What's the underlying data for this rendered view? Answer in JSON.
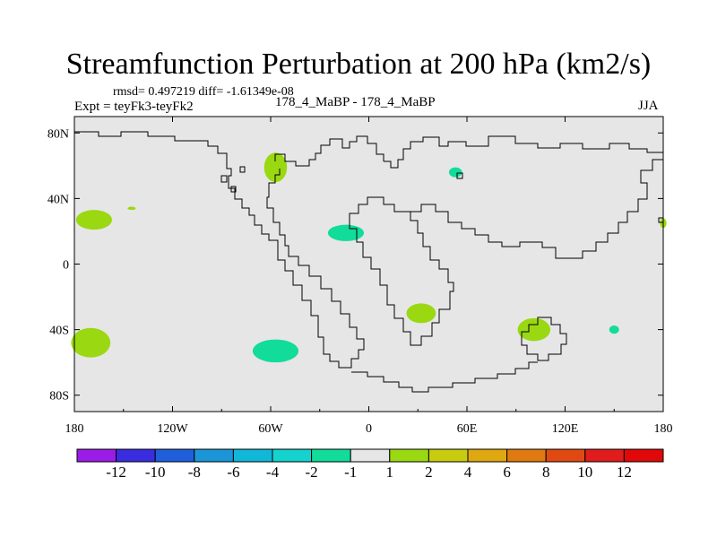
{
  "header": {
    "title": "Streamfunction Perturbation at 200 hPa (km2/s)",
    "stats": "rmsd= 0.497219 diff= -1.61349e-08",
    "experiment": "Expt = teyFk3-teyFk2",
    "case": "178_4_MaBP - 178_4_MaBP",
    "season": "JJA"
  },
  "chart_data": {
    "type": "heatmap",
    "title": "Streamfunction Perturbation at 200 hPa (km2/s)",
    "xlabel": "",
    "ylabel": "",
    "xlim": [
      -180,
      180
    ],
    "ylim": [
      -90,
      90
    ],
    "x_ticks": [
      {
        "value": -180,
        "label": "180"
      },
      {
        "value": -120,
        "label": "120W"
      },
      {
        "value": -60,
        "label": "60W"
      },
      {
        "value": 0,
        "label": "0"
      },
      {
        "value": 60,
        "label": "60E"
      },
      {
        "value": 120,
        "label": "120E"
      },
      {
        "value": 180,
        "label": "180"
      }
    ],
    "y_ticks": [
      {
        "value": 80,
        "label": "80N"
      },
      {
        "value": 40,
        "label": "40N"
      },
      {
        "value": 0,
        "label": "0"
      },
      {
        "value": -40,
        "label": "40S"
      },
      {
        "value": -80,
        "label": "80S"
      }
    ],
    "background_color": "#e6e6e6",
    "colorbar": {
      "boundaries": [
        "-12",
        "-10",
        "-8",
        "-6",
        "-4",
        "-2",
        "-1",
        "1",
        "2",
        "4",
        "6",
        "8",
        "10",
        "12"
      ],
      "colors": [
        "#9b1ce6",
        "#3a2de0",
        "#1f5fdc",
        "#1a96d8",
        "#11b7d6",
        "#15d2cf",
        "#11dc9a",
        "#e6e6e6",
        "#9ad812",
        "#c8cc10",
        "#e0a810",
        "#e07a10",
        "#e04a12",
        "#e01c1c",
        "#e00808"
      ]
    },
    "anomalies": [
      {
        "lon": 101,
        "lat": -40,
        "dlon": 10,
        "dlat": 7,
        "value": 2,
        "color": "#9ad812"
      },
      {
        "lon": 32,
        "lat": -30,
        "dlon": 9,
        "dlat": 6,
        "value": 2,
        "color": "#9ad812"
      },
      {
        "lon": -170,
        "lat": -48,
        "dlon": 12,
        "dlat": 9,
        "value": 2,
        "color": "#9ad812"
      },
      {
        "lon": -168,
        "lat": 27,
        "dlon": 11,
        "dlat": 6,
        "value": 2,
        "color": "#9ad812"
      },
      {
        "lon": -57,
        "lat": 59,
        "dlon": 7,
        "dlat": 9,
        "value": 2,
        "color": "#9ad812"
      },
      {
        "lon": 180,
        "lat": 25,
        "dlon": 2,
        "dlat": 3,
        "value": 2,
        "color": "#9ad812"
      },
      {
        "lon": -145,
        "lat": 34,
        "dlon": 2.5,
        "dlat": 1,
        "value": 2,
        "color": "#9ad812"
      },
      {
        "lon": -57,
        "lat": -53,
        "dlon": 14,
        "dlat": 7,
        "value": -2,
        "color": "#11dc9a"
      },
      {
        "lon": -14,
        "lat": 19,
        "dlon": 11,
        "dlat": 5,
        "value": -2,
        "color": "#11dc9a"
      },
      {
        "lon": 53,
        "lat": 56,
        "dlon": 4,
        "dlat": 3,
        "value": -2,
        "color": "#11dc9a"
      },
      {
        "lon": 150,
        "lat": -40,
        "dlon": 3,
        "dlat": 2.5,
        "value": -2,
        "color": "#11dc9a"
      }
    ]
  }
}
